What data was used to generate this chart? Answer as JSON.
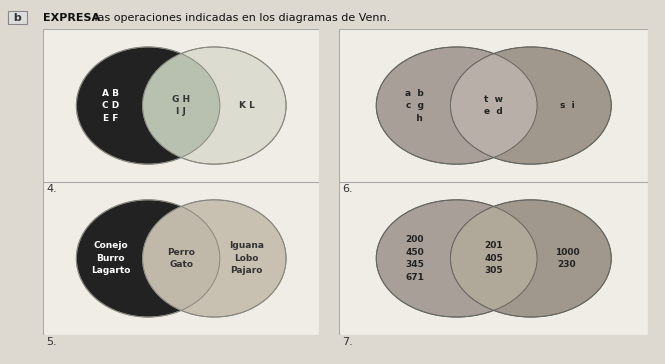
{
  "title_bold": "EXPRESA",
  "title_rest": " las operaciones indicadas en los diagramas de Venn.",
  "bg_color": "#ddd8d0",
  "box_bg": "#f0ece6",
  "diagrams": [
    {
      "number": "4.",
      "left_color": "#222222",
      "intersection_color": "#b8c0b0",
      "right_color": "#dcdcd0",
      "left_only_text": "A B\nC D\nE F",
      "intersection_text": "G H\nI J",
      "right_only_text": "K L",
      "left_text_color": "#ffffff",
      "intersection_text_color": "#333333",
      "right_text_color": "#333333",
      "circle_edge": "#888880"
    },
    {
      "number": "6.",
      "left_color": "#a8a098",
      "intersection_color": "#b8b0a8",
      "right_color": "#a0988c",
      "left_only_text": "a  b\nc  g\n   h",
      "intersection_text": "t  w\ne  d",
      "right_only_text": "s  i",
      "left_text_color": "#222222",
      "intersection_text_color": "#222222",
      "right_text_color": "#222222",
      "circle_edge": "#666660"
    },
    {
      "number": "5.",
      "left_color": "#222222",
      "intersection_color": "#c0b8a8",
      "right_color": "#c8c0b0",
      "left_only_text": "Conejo\nBurro\nLagarto",
      "intersection_text": "Perro\nGato",
      "right_only_text": "Iguana\nLobo\nPajaro",
      "left_text_color": "#ffffff",
      "intersection_text_color": "#333333",
      "right_text_color": "#333333",
      "circle_edge": "#888880"
    },
    {
      "number": "7.",
      "left_color": "#a8a098",
      "intersection_color": "#b0a898",
      "right_color": "#a0988c",
      "left_only_text": "200\n450\n345\n671",
      "intersection_text": "201\n405\n305",
      "right_only_text": "1000\n230",
      "left_text_color": "#222222",
      "intersection_text_color": "#222222",
      "right_text_color": "#222222",
      "circle_edge": "#666660"
    }
  ]
}
